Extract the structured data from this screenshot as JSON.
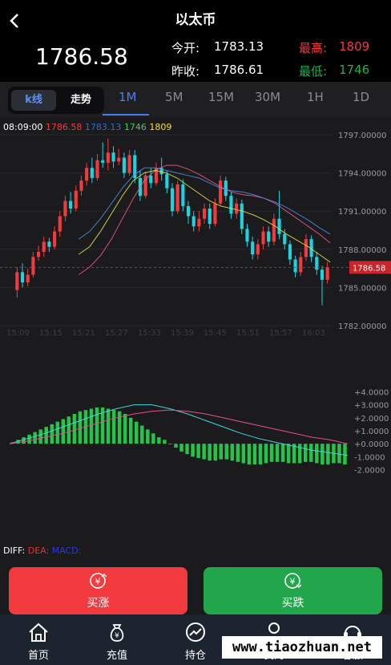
{
  "header": {
    "title": "以太币",
    "current_price": "1786.58",
    "open_label": "今开:",
    "open_value": "1783.13",
    "prev_close_label": "昨收:",
    "prev_close_value": "1786.61",
    "high_label": "最高:",
    "high_value": "1809",
    "low_label": "最低:",
    "low_value": "1746"
  },
  "tabs": {
    "kline": "k线",
    "trend": "走势",
    "timeframes": [
      "1M",
      "5M",
      "15M",
      "30M",
      "1H",
      "1D"
    ],
    "active": "1M"
  },
  "legend": {
    "time": "08:09:00",
    "v1": "1786.58",
    "v2": "1783.13",
    "v3": "1746",
    "v4": "1809"
  },
  "macd_legend": {
    "diff": "DIFF:",
    "dea": "DEA:",
    "macd": "MACD:"
  },
  "colors": {
    "up": "#f23a3f",
    "down": "#1fd2e0",
    "buy": "#f23a3f",
    "sell": "#21a64b",
    "accent": "#4a7df0"
  },
  "chart_data": [
    {
      "type": "candlestick",
      "ylim": [
        1782,
        1797
      ],
      "yticks": [
        "1797.00000",
        "1794.00000",
        "1791.00000",
        "1788.00000",
        "1785.00000",
        "1782.00000"
      ],
      "xticks": [
        "15:09",
        "15:15",
        "15:21",
        "15:27",
        "15:33",
        "15:39",
        "15:45",
        "15:51",
        "15:57",
        "16:03"
      ],
      "last_price_label": "1786.58",
      "last_price": 1786.58,
      "candles": [
        [
          1784.8,
          1786.2,
          1784.2,
          1786.6
        ],
        [
          1786.2,
          1785.4,
          1785.0,
          1786.9
        ],
        [
          1785.4,
          1786.0,
          1785.1,
          1786.5
        ],
        [
          1786.0,
          1787.4,
          1785.8,
          1787.8
        ],
        [
          1787.4,
          1787.8,
          1787.1,
          1788.3
        ],
        [
          1787.8,
          1788.6,
          1787.4,
          1789.0
        ],
        [
          1788.6,
          1788.2,
          1787.8,
          1788.9
        ],
        [
          1788.2,
          1789.4,
          1788.0,
          1789.8
        ],
        [
          1789.4,
          1790.6,
          1789.0,
          1791.0
        ],
        [
          1790.6,
          1791.8,
          1790.2,
          1792.2
        ],
        [
          1791.8,
          1791.2,
          1790.8,
          1792.5
        ],
        [
          1791.2,
          1792.6,
          1791.0,
          1793.0
        ],
        [
          1792.6,
          1793.4,
          1792.2,
          1793.8
        ],
        [
          1793.4,
          1794.4,
          1793.0,
          1794.8
        ],
        [
          1794.4,
          1793.6,
          1793.2,
          1795.2
        ],
        [
          1793.6,
          1795.0,
          1793.4,
          1795.5
        ],
        [
          1795.0,
          1794.8,
          1794.4,
          1796.4
        ],
        [
          1794.8,
          1795.6,
          1794.2,
          1796.7
        ],
        [
          1795.6,
          1794.9,
          1794.4,
          1796.1
        ],
        [
          1794.9,
          1795.2,
          1794.6,
          1795.9
        ],
        [
          1795.2,
          1794.0,
          1793.6,
          1795.6
        ],
        [
          1794.0,
          1795.4,
          1793.8,
          1795.8
        ],
        [
          1795.4,
          1793.6,
          1793.2,
          1795.8
        ],
        [
          1793.6,
          1792.2,
          1791.8,
          1794.2
        ],
        [
          1792.2,
          1793.8,
          1792.0,
          1794.1
        ],
        [
          1793.8,
          1793.2,
          1792.8,
          1794.4
        ],
        [
          1793.2,
          1794.4,
          1793.0,
          1794.8
        ],
        [
          1794.4,
          1793.9,
          1793.4,
          1795.2
        ],
        [
          1793.9,
          1792.8,
          1792.4,
          1794.2
        ],
        [
          1792.8,
          1791.0,
          1790.6,
          1793.2
        ],
        [
          1791.0,
          1793.1,
          1790.8,
          1793.4
        ],
        [
          1793.1,
          1791.4,
          1791.0,
          1793.5
        ],
        [
          1791.4,
          1790.6,
          1790.0,
          1791.8
        ],
        [
          1790.6,
          1789.8,
          1789.4,
          1791.0
        ],
        [
          1789.8,
          1790.4,
          1789.4,
          1791.0
        ],
        [
          1790.4,
          1791.2,
          1790.0,
          1791.6
        ],
        [
          1791.2,
          1790.0,
          1789.6,
          1791.6
        ],
        [
          1790.0,
          1791.6,
          1789.8,
          1792.0
        ],
        [
          1791.6,
          1793.4,
          1791.4,
          1793.8
        ],
        [
          1793.4,
          1792.2,
          1791.8,
          1793.7
        ],
        [
          1792.2,
          1790.8,
          1790.4,
          1792.5
        ],
        [
          1790.8,
          1791.6,
          1790.4,
          1792.0
        ],
        [
          1791.6,
          1789.6,
          1789.2,
          1791.9
        ],
        [
          1789.6,
          1788.6,
          1788.2,
          1790.0
        ],
        [
          1788.6,
          1787.6,
          1787.2,
          1789.0
        ],
        [
          1787.6,
          1788.4,
          1787.2,
          1788.8
        ],
        [
          1788.4,
          1789.4,
          1788.0,
          1789.8
        ],
        [
          1789.4,
          1788.6,
          1788.2,
          1789.8
        ],
        [
          1788.6,
          1790.4,
          1788.3,
          1790.8
        ],
        [
          1790.4,
          1789.2,
          1788.8,
          1792.6
        ],
        [
          1789.2,
          1788.4,
          1788.0,
          1789.6
        ],
        [
          1788.4,
          1787.2,
          1786.8,
          1788.7
        ],
        [
          1787.2,
          1786.2,
          1785.8,
          1787.5
        ],
        [
          1786.2,
          1787.4,
          1785.9,
          1787.8
        ],
        [
          1787.4,
          1788.8,
          1787.1,
          1789.2
        ],
        [
          1788.8,
          1787.4,
          1787.0,
          1789.1
        ],
        [
          1787.4,
          1786.4,
          1786.0,
          1787.8
        ],
        [
          1786.4,
          1785.6,
          1783.6,
          1786.7
        ],
        [
          1785.6,
          1786.6,
          1785.3,
          1787.0
        ]
      ],
      "ma_series": [
        {
          "color": "#f55a8c",
          "values": [
            1786.0,
            1786.6,
            1787.5,
            1788.8,
            1790.4,
            1792.0,
            1793.4,
            1794.2,
            1794.6,
            1794.6,
            1794.3,
            1793.9,
            1793.4,
            1792.9,
            1792.5,
            1792.3,
            1792.2,
            1792.0,
            1791.6,
            1791.0,
            1790.4,
            1789.8,
            1789.2,
            1788.5
          ]
        },
        {
          "color": "#e8e84a",
          "values": [
            1787.6,
            1788.2,
            1789.4,
            1790.8,
            1792.2,
            1793.4,
            1794.0,
            1794.2,
            1794.0,
            1793.6,
            1793.0,
            1792.4,
            1791.8,
            1791.4,
            1791.2,
            1791.0,
            1790.7,
            1790.3,
            1789.8,
            1789.2,
            1788.7,
            1788.2,
            1787.6,
            1787.0
          ]
        },
        {
          "color": "#4f8ee8",
          "values": [
            1788.8,
            1789.4,
            1790.4,
            1791.6,
            1792.8,
            1793.8,
            1794.4,
            1794.4,
            1794.2,
            1794.0,
            1793.8,
            1793.6,
            1793.2,
            1792.8,
            1792.6,
            1792.5,
            1792.3,
            1792.0,
            1791.7,
            1791.3,
            1790.8,
            1790.3,
            1789.7,
            1789.2
          ]
        }
      ]
    },
    {
      "type": "bar",
      "yticks": [
        "+4.0000",
        "+3.0000",
        "+2.0000",
        "+1.0000",
        "+0.0000",
        "-1.0000",
        "-2.0000"
      ],
      "ylim": [
        -2.4,
        4.4
      ],
      "macd": [
        0.1,
        0.3,
        0.5,
        0.7,
        0.9,
        1.1,
        1.3,
        1.5,
        1.7,
        1.9,
        2.1,
        2.3,
        2.5,
        2.6,
        2.7,
        2.8,
        2.8,
        2.7,
        2.6,
        2.5,
        2.3,
        2.0,
        1.7,
        1.4,
        1.1,
        0.8,
        0.5,
        0.3,
        0.0,
        -0.3,
        -0.6,
        -0.8,
        -1.0,
        -1.1,
        -1.2,
        -1.3,
        -1.3,
        -1.2,
        -1.2,
        -1.3,
        -1.4,
        -1.5,
        -1.6,
        -1.6,
        -1.6,
        -1.5,
        -1.4,
        -1.4,
        -1.4,
        -1.5,
        -1.5,
        -1.5,
        -1.4,
        -1.4,
        -1.5,
        -1.6,
        -1.6,
        -1.5,
        -1.5,
        -1.6
      ],
      "diff": [
        0.0,
        0.4,
        0.8,
        1.3,
        1.8,
        2.3,
        2.7,
        3.0,
        3.0,
        2.7,
        2.3,
        1.8,
        1.3,
        0.8,
        0.4,
        0.1,
        -0.2,
        -0.5,
        -0.7,
        -0.9
      ],
      "dea": [
        0.0,
        0.2,
        0.5,
        0.8,
        1.2,
        1.6,
        2.0,
        2.3,
        2.5,
        2.6,
        2.5,
        2.3,
        2.0,
        1.7,
        1.4,
        1.1,
        0.8,
        0.5,
        0.3,
        0.0
      ]
    }
  ],
  "actions": {
    "buy_up": "买涨",
    "buy_down": "买跌"
  },
  "nav": [
    "首页",
    "充值",
    "持仓",
    "我的",
    "客服"
  ],
  "watermark": "www.tiaozhuan.net"
}
